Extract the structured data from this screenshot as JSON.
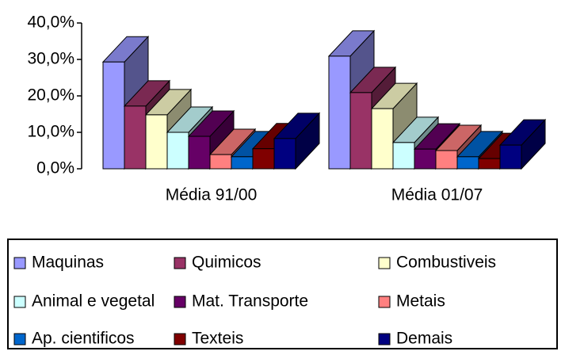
{
  "chart_data": {
    "type": "bar3d",
    "categories": [
      "Média 91/00",
      "Média 01/07"
    ],
    "ylim": [
      0,
      40
    ],
    "yticks": [
      {
        "value": 0,
        "label": "0,0%"
      },
      {
        "value": 10,
        "label": "10,0%"
      },
      {
        "value": 20,
        "label": "20,0%"
      },
      {
        "value": 30,
        "label": "30,0%"
      },
      {
        "value": 40,
        "label": "40,0%"
      }
    ],
    "series": [
      {
        "name": "Maquinas",
        "color": "#9999ff",
        "values": [
          29.3,
          30.9
        ]
      },
      {
        "name": "Quimicos",
        "color": "#993366",
        "values": [
          17.2,
          20.9
        ]
      },
      {
        "name": "Combustiveis",
        "color": "#ffffcc",
        "values": [
          14.8,
          16.5
        ]
      },
      {
        "name": "Animal e vegetal",
        "color": "#ccffff",
        "values": [
          10.0,
          7.2
        ]
      },
      {
        "name": "Mat. Transporte",
        "color": "#660066",
        "values": [
          8.9,
          5.4
        ]
      },
      {
        "name": "Metais",
        "color": "#ff8080",
        "values": [
          3.9,
          5.0
        ]
      },
      {
        "name": "Ap. cientificos",
        "color": "#0066cc",
        "values": [
          3.3,
          3.3
        ]
      },
      {
        "name": "Texteis",
        "color": "#800000",
        "values": [
          5.5,
          2.8
        ]
      },
      {
        "name": "Demais",
        "color": "#000080",
        "values": [
          8.3,
          6.5
        ]
      }
    ]
  }
}
